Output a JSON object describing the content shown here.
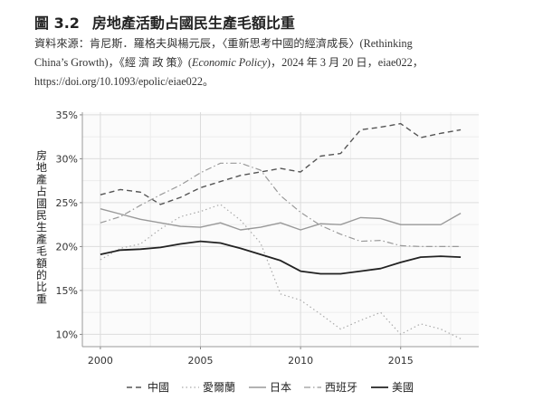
{
  "figure": {
    "number": "圖 3.2",
    "title": "房地產活動占國民生產毛額比重",
    "source_line1": "資料來源：肯尼斯．羅格夫與楊元辰，〈重新思考中國的經濟成長〉(Rethinking",
    "source_line2_a": "China’s Growth)，《經 濟 政 策》(",
    "source_line2_italic": "Economic Policy",
    "source_line2_b": ")，2024 年 3 月 20 日，eiae022，",
    "source_line3": "https://doi.org/10.1093/epolic/eiae022。"
  },
  "chart_data": {
    "type": "line",
    "ylabel": "房地產占國民生產毛額的比重",
    "xlabel": "",
    "xlim": [
      1999.1,
      2018.9
    ],
    "ylim": [
      8.6,
      35.3
    ],
    "x_ticks": [
      "2000",
      "2005",
      "2010",
      "2015"
    ],
    "y_ticks": [
      "10%",
      "15%",
      "20%",
      "25%",
      "30%",
      "35%"
    ],
    "grid": true,
    "legend_position": "bottom",
    "x": [
      2000,
      2001,
      2002,
      2003,
      2004,
      2005,
      2006,
      2007,
      2008,
      2009,
      2010,
      2011,
      2012,
      2013,
      2014,
      2015,
      2016,
      2017,
      2018
    ],
    "series": [
      {
        "name": "中國",
        "style": "dashed",
        "color": "#555555",
        "values": [
          25.9,
          26.5,
          26.2,
          24.8,
          25.6,
          26.7,
          27.4,
          28.1,
          28.5,
          28.9,
          28.5,
          30.3,
          30.6,
          33.3,
          33.6,
          34.0,
          32.4,
          32.9,
          33.3
        ]
      },
      {
        "name": "愛爾蘭",
        "style": "dotted",
        "color": "#aaaaaa",
        "values": [
          18.5,
          19.8,
          20.3,
          22.0,
          23.4,
          24.0,
          24.8,
          23.0,
          20.4,
          14.6,
          13.9,
          12.3,
          10.6,
          11.6,
          12.5,
          10.0,
          11.2,
          10.6,
          9.5
        ]
      },
      {
        "name": "日本",
        "style": "solid",
        "color": "#999999",
        "values": [
          24.3,
          23.7,
          23.1,
          22.7,
          22.3,
          22.2,
          22.7,
          21.9,
          22.2,
          22.7,
          21.9,
          22.6,
          22.5,
          23.3,
          23.2,
          22.5,
          22.5,
          22.5,
          23.8
        ]
      },
      {
        "name": "西班牙",
        "style": "dashdot",
        "color": "#999999",
        "values": [
          22.7,
          23.4,
          24.7,
          25.9,
          27.0,
          28.4,
          29.5,
          29.5,
          28.7,
          25.8,
          23.9,
          22.4,
          21.4,
          20.6,
          20.7,
          20.1,
          20.0,
          20.0,
          20.0
        ]
      },
      {
        "name": "美國",
        "style": "solid-bold",
        "color": "#222222",
        "values": [
          19.1,
          19.6,
          19.7,
          19.9,
          20.3,
          20.6,
          20.4,
          19.8,
          19.1,
          18.4,
          17.2,
          16.9,
          16.9,
          17.2,
          17.5,
          18.2,
          18.8,
          18.9,
          18.8
        ]
      }
    ]
  }
}
